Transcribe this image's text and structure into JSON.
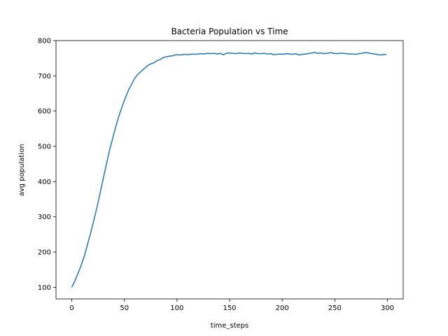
{
  "chart_data": {
    "type": "line",
    "title": "Bacteria Population vs Time",
    "xlabel": "time_steps",
    "ylabel": "avg population",
    "xlim": [
      -15,
      315
    ],
    "ylim": [
      67,
      800
    ],
    "x_ticks": [
      0,
      50,
      100,
      150,
      200,
      250,
      300
    ],
    "y_ticks": [
      100,
      200,
      300,
      400,
      500,
      600,
      700,
      800
    ],
    "grid": false,
    "series": [
      {
        "color": "#1f77b4",
        "x": [
          0,
          3,
          6,
          9,
          12,
          15,
          18,
          21,
          24,
          27,
          30,
          33,
          36,
          39,
          42,
          45,
          48,
          51,
          54,
          57,
          60,
          63,
          66,
          69,
          72,
          75,
          78,
          81,
          84,
          87,
          90,
          93,
          96,
          99,
          102,
          105,
          108,
          111,
          114,
          117,
          120,
          123,
          126,
          129,
          132,
          135,
          138,
          141,
          144,
          147,
          150,
          153,
          156,
          159,
          162,
          165,
          168,
          171,
          174,
          177,
          180,
          183,
          186,
          189,
          192,
          195,
          198,
          201,
          204,
          207,
          210,
          213,
          216,
          219,
          222,
          225,
          228,
          231,
          234,
          237,
          240,
          243,
          246,
          249,
          252,
          255,
          258,
          261,
          264,
          267,
          270,
          273,
          276,
          279,
          282,
          285,
          288,
          291,
          294,
          297,
          299
        ],
        "y": [
          100,
          118,
          140,
          163,
          189,
          222,
          255,
          290,
          328,
          368,
          410,
          450,
          490,
          524,
          558,
          588,
          614,
          638,
          660,
          677,
          694,
          705,
          713,
          721,
          729,
          734,
          737,
          743,
          746,
          752,
          754,
          756,
          757,
          760,
          759,
          760,
          761,
          760,
          762,
          761,
          762,
          763,
          762,
          764,
          763,
          764,
          762,
          764,
          760,
          764,
          765,
          764,
          763,
          765,
          764,
          763,
          764,
          762,
          765,
          763,
          763,
          764,
          762,
          763,
          760,
          761,
          762,
          761,
          763,
          762,
          761,
          763,
          759,
          761,
          762,
          763,
          765,
          766,
          764,
          765,
          763,
          764,
          766,
          764,
          763,
          764,
          764,
          763,
          762,
          762,
          761,
          763,
          764,
          766,
          765,
          763,
          762,
          760,
          759,
          761,
          760
        ]
      }
    ]
  }
}
